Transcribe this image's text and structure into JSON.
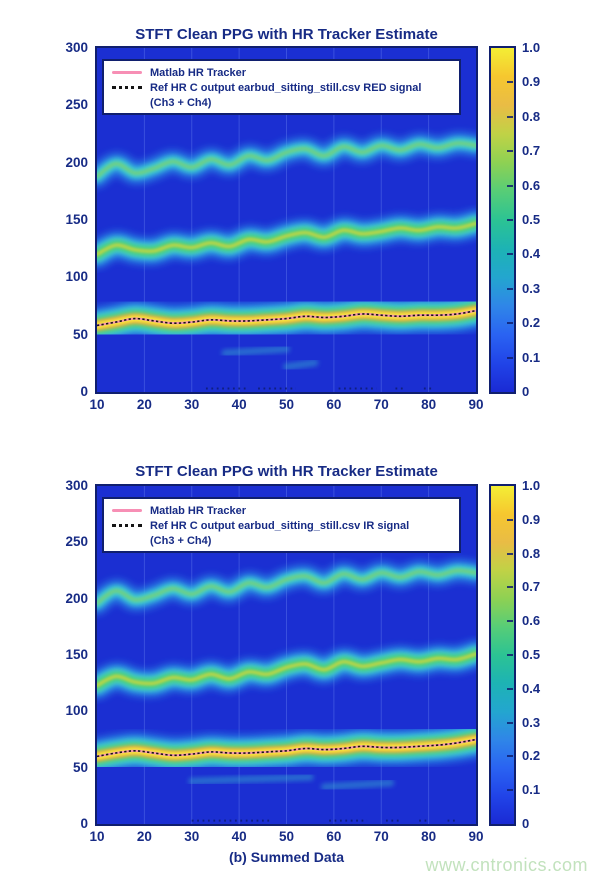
{
  "page": {
    "background": "#ffffff"
  },
  "colors": {
    "text_navy": "#172b85",
    "axis_border": "#101f6e",
    "plot_background": "#1b2fd2",
    "tracker_pink": "#f78fb5",
    "reference_black": "#151515",
    "band_cyan": "#3fd0cf",
    "band_blue": "#2d9ce8",
    "band_green": "#4bcf7d",
    "band_yellow_green": "#b7d549",
    "band_orange": "#edb23a",
    "band_yellow": "#f5ec3c",
    "watermark_green": "#c2e2bd"
  },
  "watermark": {
    "text": "www.cntronics.com"
  },
  "colorbar": {
    "ticks": [
      "1.0",
      "0.9",
      "0.8",
      "0.7",
      "0.6",
      "0.5",
      "0.4",
      "0.3",
      "0.2",
      "0.1",
      "0"
    ],
    "range": [
      0,
      1
    ],
    "gradient_bottom_to_top": [
      "#1a2ad4",
      "#2144e8",
      "#2a63f2",
      "#2f86e8",
      "#23a6cf",
      "#1db3b4",
      "#2cc393",
      "#57cd77",
      "#8ed153",
      "#c0d246",
      "#e9bc45",
      "#f6c72f",
      "#f3ee35"
    ]
  },
  "chart_data": [
    {
      "type": "heatmap",
      "title": "STFT Clean PPG with HR Tracker Estimate",
      "xlabel": "",
      "ylabel": "",
      "x_range": [
        10,
        90
      ],
      "y_range": [
        0,
        300
      ],
      "colorbar_range": [
        0,
        1
      ],
      "grid": "faint-vertical",
      "legend_position": "top-left-inside",
      "xticks": [
        "10",
        "20",
        "30",
        "40",
        "50",
        "60",
        "70",
        "80",
        "90"
      ],
      "yticks": [
        "0",
        "50",
        "100",
        "150",
        "200",
        "250",
        "300"
      ],
      "legend": [
        {
          "label": "Matlab HR Tracker",
          "style": "pink-line"
        },
        {
          "label": "Ref HR C output earbud_sitting_still.csv RED signal",
          "style": "black-dotted"
        },
        {
          "label": "(Ch3 + Ch4)",
          "style": "none"
        }
      ],
      "x": [
        10,
        14,
        18,
        22,
        26,
        30,
        34,
        38,
        42,
        46,
        50,
        54,
        58,
        62,
        66,
        70,
        74,
        78,
        82,
        86,
        90
      ],
      "series": [
        {
          "name": "hr-fundamental-band-and-tracker",
          "values": [
            58,
            61,
            64,
            62,
            60,
            61,
            63,
            62,
            62,
            63,
            64,
            66,
            65,
            66,
            68,
            67,
            66,
            67,
            67,
            68,
            71
          ]
        },
        {
          "name": "second-harmonic-band",
          "values": [
            120,
            128,
            124,
            123,
            128,
            126,
            130,
            127,
            133,
            131,
            136,
            139,
            135,
            141,
            138,
            140,
            143,
            141,
            144,
            143,
            147
          ]
        },
        {
          "name": "third-harmonic-band",
          "values": [
            188,
            199,
            191,
            195,
            201,
            196,
            203,
            198,
            206,
            202,
            209,
            212,
            206,
            214,
            209,
            215,
            211,
            216,
            213,
            217,
            215
          ]
        }
      ],
      "noise_dot_segments": [
        [
          33,
          42
        ],
        [
          44,
          52
        ],
        [
          61,
          69
        ],
        [
          73,
          75
        ],
        [
          79,
          81
        ]
      ],
      "wisps": [
        {
          "x0": 37,
          "x1": 50,
          "y": 34
        },
        {
          "x0": 50,
          "x1": 56,
          "y": 22
        }
      ]
    },
    {
      "type": "heatmap",
      "title": "STFT Clean PPG with HR Tracker Estimate",
      "xlabel": "(b) Summed Data",
      "ylabel": "",
      "x_range": [
        10,
        90
      ],
      "y_range": [
        0,
        300
      ],
      "colorbar_range": [
        0,
        1
      ],
      "grid": "faint-vertical",
      "legend_position": "top-left-inside",
      "xticks": [
        "10",
        "20",
        "30",
        "40",
        "50",
        "60",
        "70",
        "80",
        "90"
      ],
      "yticks": [
        "0",
        "50",
        "100",
        "150",
        "200",
        "250",
        "300"
      ],
      "legend": [
        {
          "label": "Matlab HR Tracker",
          "style": "pink-line"
        },
        {
          "label": "Ref HR C output earbud_sitting_still.csv IR signal",
          "style": "black-dotted"
        },
        {
          "label": "(Ch3 + Ch4)",
          "style": "none"
        }
      ],
      "x": [
        10,
        14,
        18,
        22,
        26,
        30,
        34,
        38,
        42,
        46,
        50,
        54,
        58,
        62,
        66,
        70,
        74,
        78,
        82,
        86,
        90
      ],
      "series": [
        {
          "name": "hr-fundamental-band-and-tracker",
          "values": [
            60,
            63,
            65,
            63,
            61,
            62,
            64,
            63,
            63,
            64,
            65,
            67,
            66,
            67,
            69,
            68,
            68,
            69,
            70,
            72,
            75
          ]
        },
        {
          "name": "second-harmonic-band",
          "values": [
            123,
            131,
            126,
            125,
            130,
            128,
            133,
            129,
            135,
            133,
            139,
            142,
            137,
            144,
            140,
            143,
            146,
            144,
            147,
            146,
            151
          ]
        },
        {
          "name": "third-harmonic-band",
          "values": [
            196,
            207,
            199,
            203,
            209,
            204,
            211,
            206,
            214,
            210,
            217,
            220,
            214,
            222,
            217,
            223,
            219,
            224,
            221,
            225,
            223
          ]
        }
      ],
      "noise_dot_segments": [
        [
          30,
          47
        ],
        [
          59,
          67
        ],
        [
          71,
          74
        ],
        [
          78,
          80
        ],
        [
          84,
          86
        ]
      ],
      "wisps": [
        {
          "x0": 30,
          "x1": 55,
          "y": 38
        },
        {
          "x0": 58,
          "x1": 72,
          "y": 33
        }
      ]
    }
  ]
}
